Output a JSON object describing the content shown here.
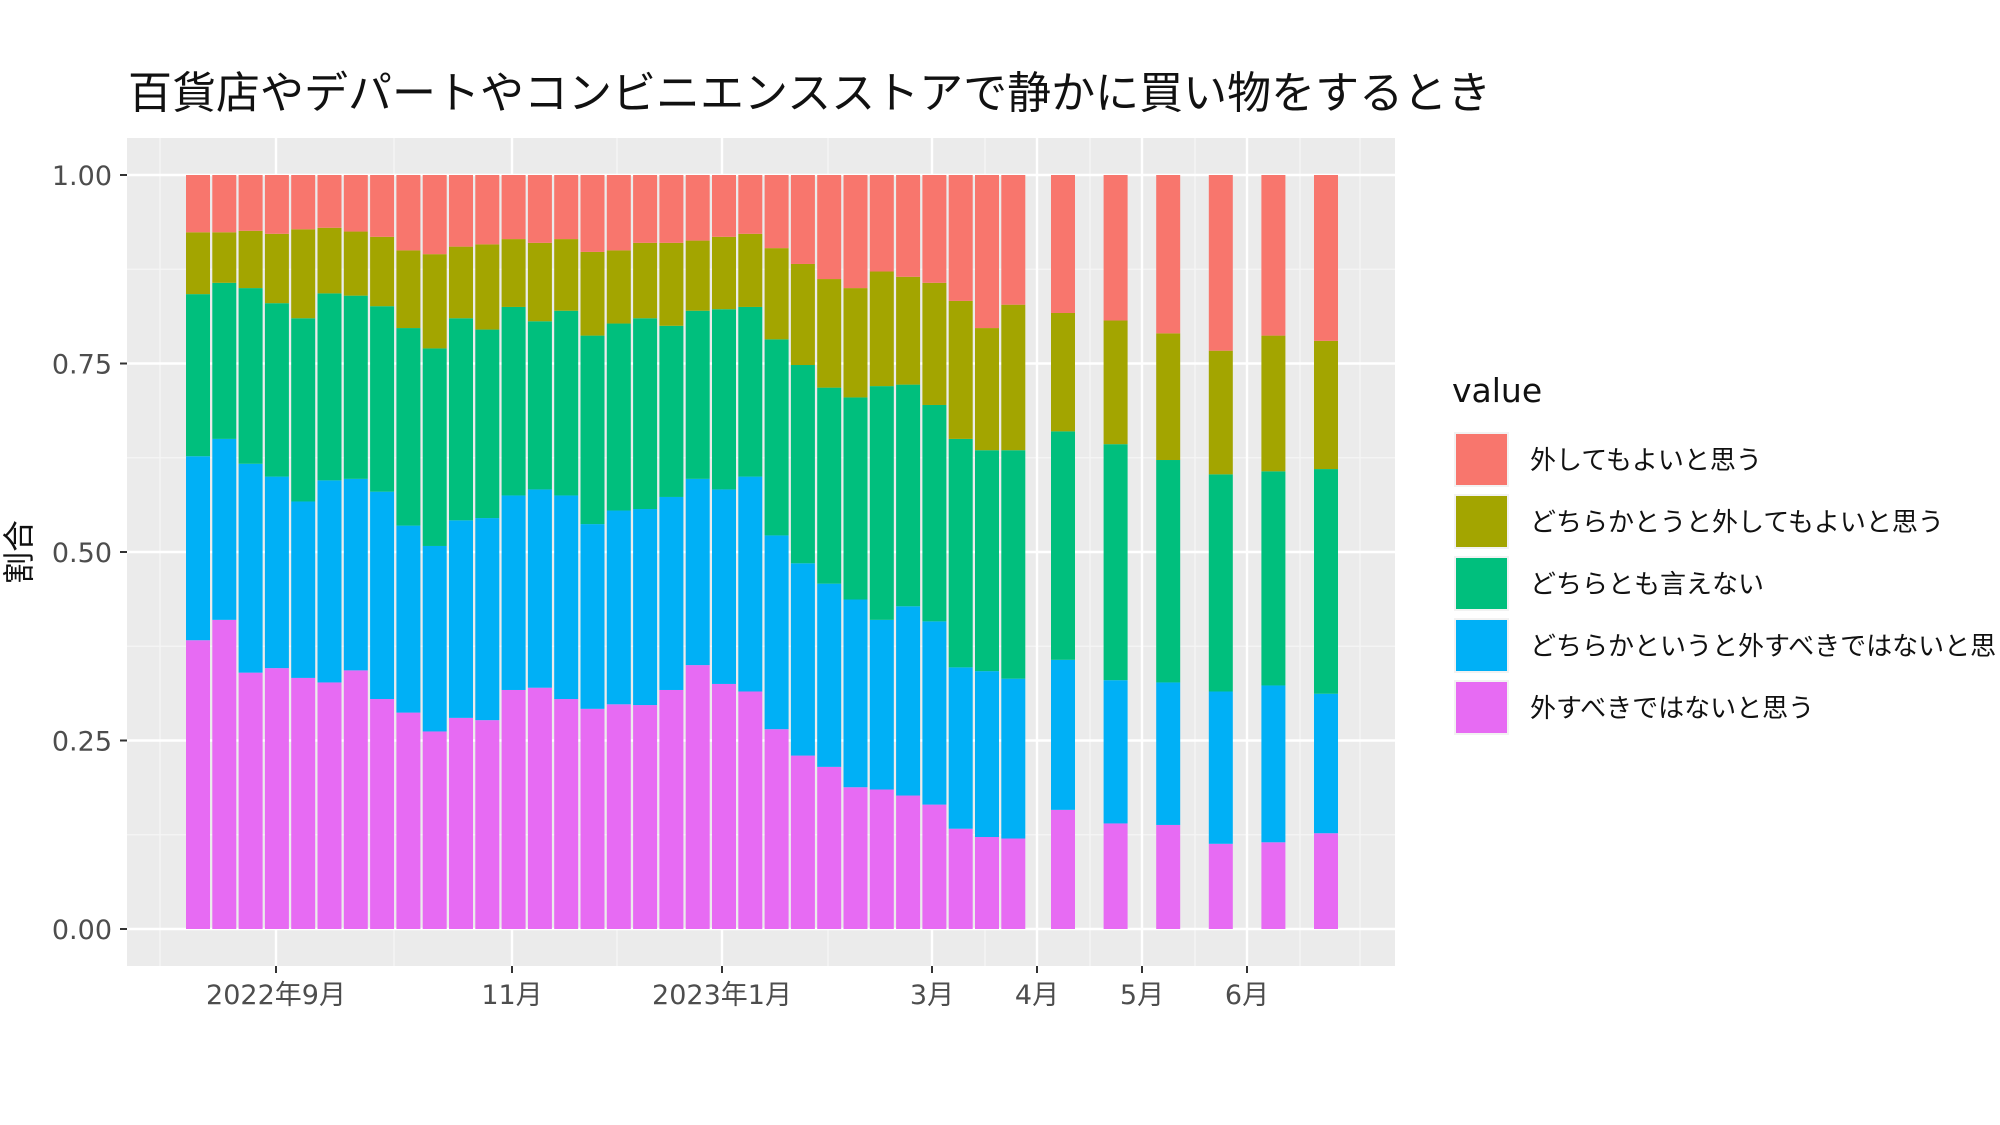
{
  "chart_data": {
    "type": "bar",
    "stacked": true,
    "title": "百貨店やデパートやコンビニエンスストアで静かに買い物をするとき",
    "ylabel": "割合",
    "xlabel": "",
    "ylim": [
      0,
      1
    ],
    "yticks": [
      "0.00",
      "0.25",
      "0.50",
      "0.75",
      "1.00"
    ],
    "xtick_labels": [
      "2022年9月",
      "11月",
      "2023年1月",
      "3月",
      "4月",
      "5月",
      "6月"
    ],
    "grid": true,
    "legend": {
      "title": "value",
      "position": "right",
      "entries": [
        "外してもよいと思う",
        "どちらかとうと外してもよいと思う",
        "どちらとも言えない",
        "どちらかというと外すべきではないと思う",
        "外すべきではないと思う"
      ]
    },
    "series_colors": [
      "#F8766D",
      "#A3A500",
      "#00BF7D",
      "#00B0F6",
      "#E76BF3"
    ],
    "boundaries_note": "cumulative",
    "bars": [
      [
        0.383,
        0.627,
        0.842,
        0.924
      ],
      [
        0.41,
        0.65,
        0.857,
        0.924
      ],
      [
        0.34,
        0.617,
        0.85,
        0.926
      ],
      [
        0.346,
        0.6,
        0.83,
        0.922
      ],
      [
        0.333,
        0.567,
        0.81,
        0.928
      ],
      [
        0.327,
        0.595,
        0.843,
        0.93
      ],
      [
        0.343,
        0.597,
        0.84,
        0.925
      ],
      [
        0.305,
        0.58,
        0.826,
        0.918
      ],
      [
        0.287,
        0.535,
        0.797,
        0.9
      ],
      [
        0.262,
        0.508,
        0.77,
        0.895
      ],
      [
        0.28,
        0.542,
        0.81,
        0.905
      ],
      [
        0.277,
        0.545,
        0.795,
        0.908
      ],
      [
        0.317,
        0.575,
        0.825,
        0.915
      ],
      [
        0.32,
        0.583,
        0.806,
        0.91
      ],
      [
        0.305,
        0.575,
        0.82,
        0.915
      ],
      [
        0.292,
        0.537,
        0.787,
        0.898
      ],
      [
        0.298,
        0.555,
        0.803,
        0.9
      ],
      [
        0.297,
        0.557,
        0.81,
        0.91
      ],
      [
        0.317,
        0.573,
        0.8,
        0.91
      ],
      [
        0.35,
        0.597,
        0.82,
        0.913
      ],
      [
        0.325,
        0.583,
        0.822,
        0.918
      ],
      [
        0.315,
        0.6,
        0.825,
        0.922
      ],
      [
        0.265,
        0.522,
        0.782,
        0.903
      ],
      [
        0.23,
        0.485,
        0.748,
        0.882
      ],
      [
        0.215,
        0.458,
        0.718,
        0.862
      ],
      [
        0.188,
        0.437,
        0.705,
        0.85
      ],
      [
        0.185,
        0.41,
        0.72,
        0.872
      ],
      [
        0.177,
        0.428,
        0.722,
        0.865
      ],
      [
        0.165,
        0.408,
        0.695,
        0.857
      ],
      [
        0.133,
        0.347,
        0.65,
        0.833
      ],
      [
        0.122,
        0.342,
        0.635,
        0.797
      ],
      [
        0.12,
        0.332,
        0.635,
        0.828
      ],
      [
        0.158,
        0.357,
        0.66,
        0.817
      ],
      [
        0.14,
        0.33,
        0.643,
        0.807
      ],
      [
        0.138,
        0.327,
        0.622,
        0.79
      ],
      [
        0.113,
        0.315,
        0.603,
        0.767
      ],
      [
        0.115,
        0.323,
        0.607,
        0.787
      ],
      [
        0.127,
        0.312,
        0.61,
        0.78
      ]
    ]
  }
}
